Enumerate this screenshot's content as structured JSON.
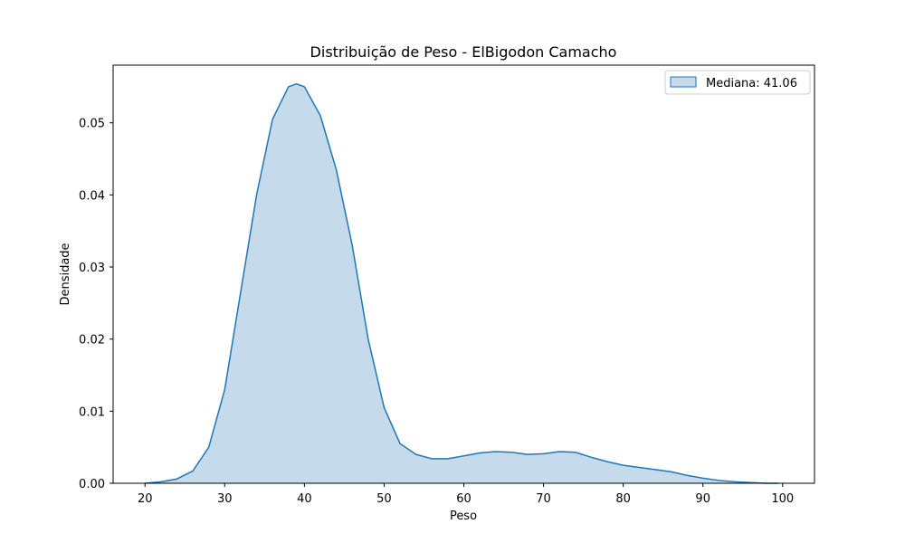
{
  "chart_data": {
    "type": "area",
    "title": "Distribuição de Peso - ElBigodon Camacho",
    "xlabel": "Peso",
    "ylabel": "Densidade",
    "xlim": [
      16,
      104
    ],
    "ylim": [
      0,
      0.058
    ],
    "xticks": [
      20,
      30,
      40,
      50,
      60,
      70,
      80,
      90,
      100
    ],
    "yticks": [
      0.0,
      0.01,
      0.02,
      0.03,
      0.04,
      0.05
    ],
    "ytick_labels": [
      "0.00",
      "0.01",
      "0.02",
      "0.03",
      "0.04",
      "0.05"
    ],
    "xtick_labels": [
      "20",
      "30",
      "40",
      "50",
      "60",
      "70",
      "80",
      "90",
      "100"
    ],
    "grid": false,
    "legend_position": "top-right",
    "series": [
      {
        "name": "Mediana: 41.06",
        "color": "#1f77b4",
        "fill_color": "#c5dbec",
        "x": [
          20,
          22,
          24,
          26,
          28,
          30,
          32,
          34,
          36,
          38,
          39,
          40,
          42,
          44,
          46,
          48,
          50,
          52,
          54,
          56,
          58,
          60,
          62,
          64,
          66,
          68,
          70,
          72,
          74,
          76,
          78,
          80,
          82,
          84,
          86,
          88,
          90,
          92,
          94,
          96,
          98,
          99.5
        ],
        "y": [
          0.0,
          0.0002,
          0.0006,
          0.0017,
          0.005,
          0.013,
          0.0265,
          0.04,
          0.0505,
          0.055,
          0.0554,
          0.055,
          0.051,
          0.0435,
          0.033,
          0.02,
          0.0105,
          0.0055,
          0.004,
          0.0034,
          0.0034,
          0.0038,
          0.0042,
          0.0044,
          0.0043,
          0.004,
          0.0041,
          0.0044,
          0.0043,
          0.0036,
          0.003,
          0.0025,
          0.0022,
          0.0019,
          0.0016,
          0.0011,
          0.0007,
          0.0004,
          0.0002,
          0.0001,
          0.0,
          0.0
        ]
      }
    ]
  }
}
